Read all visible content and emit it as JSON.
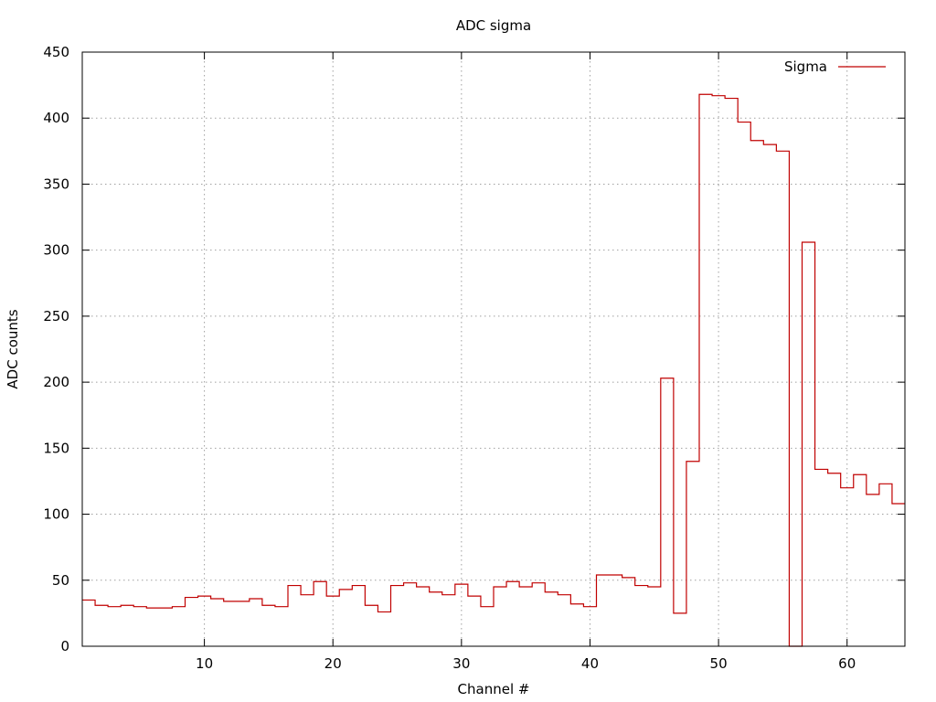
{
  "chart_data": {
    "type": "line",
    "step": true,
    "title": "ADC sigma",
    "xlabel": "Channel #",
    "ylabel": "ADC counts",
    "xlim": [
      0.5,
      64.5
    ],
    "ylim": [
      0,
      450
    ],
    "xticks": [
      10,
      20,
      30,
      40,
      50,
      60
    ],
    "yticks": [
      0,
      50,
      100,
      150,
      200,
      250,
      300,
      350,
      400,
      450
    ],
    "grid": true,
    "legend_position": "top-right",
    "series": [
      {
        "name": "Sigma",
        "color": "#c00000",
        "x": [
          1,
          2,
          3,
          4,
          5,
          6,
          7,
          8,
          9,
          10,
          11,
          12,
          13,
          14,
          15,
          16,
          17,
          18,
          19,
          20,
          21,
          22,
          23,
          24,
          25,
          26,
          27,
          28,
          29,
          30,
          31,
          32,
          33,
          34,
          35,
          36,
          37,
          38,
          39,
          40,
          41,
          42,
          43,
          44,
          45,
          46,
          47,
          48,
          49,
          50,
          51,
          52,
          53,
          54,
          55,
          56,
          57,
          58,
          59,
          60,
          61,
          62,
          63,
          64
        ],
        "y": [
          35,
          31,
          30,
          31,
          30,
          29,
          29,
          30,
          37,
          38,
          36,
          34,
          34,
          36,
          31,
          30,
          46,
          39,
          49,
          38,
          43,
          46,
          31,
          26,
          46,
          48,
          45,
          41,
          39,
          47,
          38,
          30,
          45,
          49,
          45,
          48,
          41,
          39,
          32,
          30,
          54,
          54,
          52,
          46,
          45,
          203,
          25,
          140,
          418,
          417,
          415,
          397,
          383,
          380,
          375,
          0,
          306,
          134,
          131,
          120,
          130,
          115,
          123,
          108
        ]
      }
    ]
  }
}
